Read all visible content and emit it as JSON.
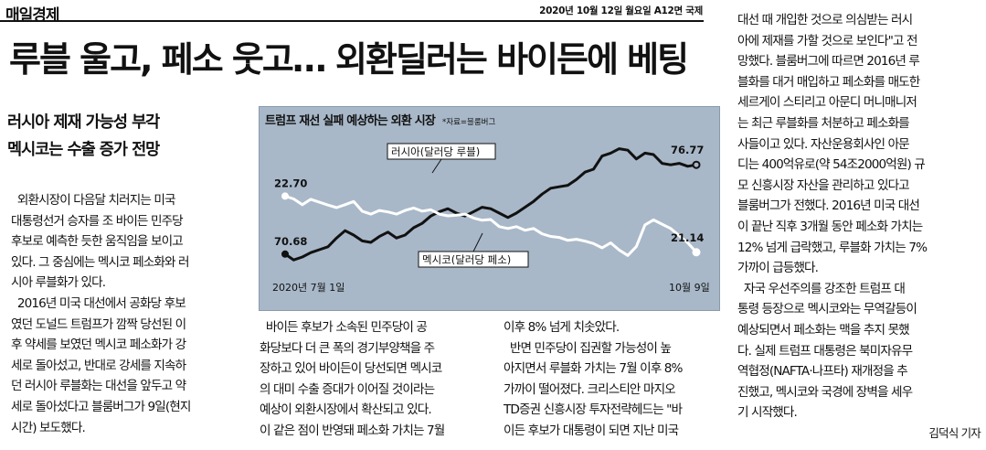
{
  "masthead": "매일경제",
  "dateline": "2020년 10월 12일 월요일 A12면 국제",
  "headline": "루블 울고, 페소 웃고… 외환딜러는 바이든에 베팅",
  "subheads": [
    "러시아 제재 가능성 부각",
    "멕시코는 수출 증가 전망"
  ],
  "col1": [
    "  외환시장이 다음달 치러지는 미국",
    "대통령선거 승자를 조 바이든 민주당",
    "후보로 예측한 듯한 움직임을 보이고",
    "있다. 그 중심에는 멕시코 페소화와 러",
    "시아 루블화가 있다.",
    "  2016년 미국 대선에서 공화당 후보",
    "였던 도널드 트럼프가 깜짝 당선된 이",
    "후 약세를 보였던 멕시코 페소화가 강",
    "세로 돌아섰고, 반대로 강세를 지속하",
    "던 러시아 루블화는 대선을 앞두고 약",
    "세로 돌아섰다고 블룸버그가 9일(현지",
    "시간) 보도했다."
  ],
  "col2": [
    "  바이든 후보가 소속된 민주당이 공",
    "화당보다 더 큰 폭의 경기부양책을 주",
    "장하고 있어 바이든이 당선되면 멕시코",
    "의 대미 수출 증대가 이어질 것이라는",
    "예상이 외환시장에서 확산되고 있다.",
    "이 같은 점이 반영돼 페소화 가치는 7월"
  ],
  "col3": [
    "이후 8% 넘게 치솟았다.",
    "  반면 민주당이 집권할 가능성이 높",
    "아지면서 루블화 가치는 7월 이후 8%",
    "가까이 떨어졌다. 크리스티안 마지오",
    "TD증권 신흥시장 투자전략헤드는 \"바",
    "이든 후보가 대통령이 되면 지난 미국"
  ],
  "col4": [
    "대선 때 개입한 것으로 의심받는 러시",
    "아에 제재를 가할 것으로 보인다\"고 전",
    "망했다. 블룸버그에 따르면 2016년 루",
    "블화를 대거 매입하고 페소화를 매도한",
    "세르게이 스티리고 아문디 머니매니저",
    "는 최근 루블화를 처분하고 페소화를",
    "사들이고 있다. 자산운용회사인 아문",
    "디는 400억유로(약 54조2000억원) 규",
    "모 신흥시장 자산을 관리하고 있다고",
    "블룸버그가 전했다. 2016년 미국 대선",
    "이 끝난 직후 3개월 동안 페소화 가치는",
    "12% 넘게 급락했고, 루블화 가치는 7%",
    "가까이 급등했다.",
    "  자국 우선주의를 강조한 트럼프 대",
    "통령 등장으로 멕시코와는 무역갈등이",
    "예상되면서 페소화는 맥을 추지 못했",
    "다. 실제 트럼프 대통령은 북미자유무",
    "역협정(NAFTA·나프타) 재개정을 추",
    "진했고, 멕시코와 국경에 장벽을 세우",
    "기 시작했다."
  ],
  "byline": "김덕식 기자",
  "chart_data": {
    "type": "line",
    "title": "트럼프 재선 실패 예상하는 외환 시장",
    "source": "*자료=블룸버그",
    "x_start_label": "2020년 7월 1일",
    "x_end_label": "10월 9일",
    "series": [
      {
        "name": "러시아(달러당 루블)",
        "color": "#111111",
        "start_label": "70.68",
        "end_label": "76.77",
        "values": [
          70.7,
          70.3,
          70.5,
          70.8,
          71.0,
          71.2,
          71.8,
          72.3,
          72.0,
          71.6,
          71.5,
          71.9,
          72.2,
          71.8,
          72.0,
          72.5,
          72.8,
          73.3,
          73.6,
          73.8,
          73.5,
          73.3,
          73.6,
          73.9,
          73.8,
          73.5,
          73.2,
          73.5,
          73.9,
          74.3,
          74.8,
          75.2,
          75.3,
          75.4,
          75.8,
          76.3,
          76.5,
          77.4,
          77.6,
          77.9,
          77.8,
          77.2,
          77.6,
          77.5,
          76.9,
          76.8,
          76.9,
          76.7,
          76.8
        ]
      },
      {
        "name": "멕시코(달러당 페소)",
        "color": "#ffffff",
        "start_label": "22.70",
        "end_label": "21.14",
        "values": [
          22.7,
          22.62,
          22.46,
          22.61,
          22.53,
          22.45,
          22.38,
          22.46,
          22.55,
          22.28,
          22.2,
          22.3,
          22.26,
          22.2,
          22.3,
          22.37,
          22.28,
          22.32,
          22.2,
          22.15,
          22.17,
          22.2,
          22.09,
          22.03,
          22.05,
          21.85,
          21.8,
          21.85,
          21.75,
          21.8,
          21.65,
          21.58,
          21.55,
          21.47,
          21.5,
          21.45,
          21.38,
          21.26,
          21.4,
          21.2,
          21.05,
          21.3,
          21.9,
          22.04,
          21.92,
          21.8,
          21.6,
          21.4,
          21.14
        ]
      }
    ]
  }
}
